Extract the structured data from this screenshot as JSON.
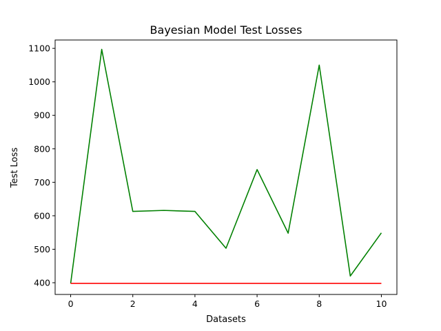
{
  "chart_data": {
    "type": "line",
    "title": "Bayesian Model Test Losses",
    "xlabel": "Datasets",
    "ylabel": "Test Loss",
    "xlim": [
      -0.5,
      10.5
    ],
    "ylim": [
      365,
      1125
    ],
    "xticks": [
      0,
      2,
      4,
      6,
      8,
      10
    ],
    "yticks": [
      400,
      500,
      600,
      700,
      800,
      900,
      1000,
      1100
    ],
    "grid": false,
    "legend": "none",
    "x": [
      0,
      1,
      2,
      3,
      4,
      5,
      6,
      7,
      8,
      9,
      10
    ],
    "series": [
      {
        "color": "#008000",
        "values": [
          398,
          1097,
          613,
          616,
          613,
          503,
          738,
          548,
          1050,
          420,
          549
        ]
      },
      {
        "color": "#ff0000",
        "values": [
          398,
          398,
          398,
          398,
          398,
          398,
          398,
          398,
          398,
          398,
          398
        ]
      }
    ]
  }
}
